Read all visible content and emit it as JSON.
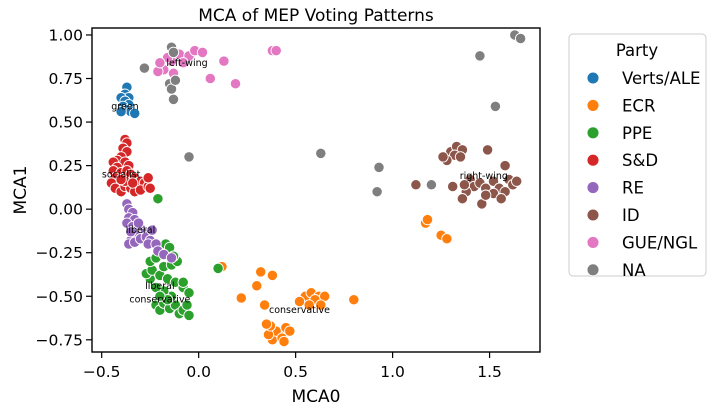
{
  "chart_data": {
    "type": "scatter",
    "title": "MCA of MEP Voting Patterns",
    "xlabel": "MCA0",
    "ylabel": "MCA1",
    "xlim": [
      -0.55,
      1.76
    ],
    "ylim": [
      -0.82,
      1.04
    ],
    "xticks": [
      -0.5,
      0.0,
      0.5,
      1.0,
      1.5
    ],
    "xtick_labels": [
      "−0.5",
      "0.0",
      "0.5",
      "1.0",
      "1.5"
    ],
    "yticks": [
      -0.75,
      -0.5,
      -0.25,
      0.0,
      0.25,
      0.5,
      0.75,
      1.0
    ],
    "ytick_labels": [
      "−0.75",
      "−0.50",
      "−0.25",
      "0.00",
      "0.25",
      "0.50",
      "0.75",
      "1.00"
    ],
    "grid": false,
    "legend": {
      "title": "Party",
      "placement": "outside-right"
    },
    "series": [
      {
        "name": "Verts/ALE",
        "color": "#1f77b4",
        "points": [
          [
            -0.37,
            0.7
          ],
          [
            -0.38,
            0.66
          ],
          [
            -0.36,
            0.64
          ],
          [
            -0.4,
            0.64
          ],
          [
            -0.38,
            0.62
          ],
          [
            -0.36,
            0.6
          ],
          [
            -0.39,
            0.59
          ],
          [
            -0.37,
            0.57
          ],
          [
            -0.35,
            0.56
          ],
          [
            -0.33,
            0.55
          ],
          [
            -0.4,
            0.56
          ],
          [
            -0.42,
            0.14
          ]
        ]
      },
      {
        "name": "ECR",
        "color": "#ff7f0e",
        "points": [
          [
            0.42,
            -0.72
          ],
          [
            0.38,
            -0.75
          ],
          [
            0.4,
            -0.7
          ],
          [
            0.45,
            -0.68
          ],
          [
            0.43,
            -0.74
          ],
          [
            0.36,
            -0.72
          ],
          [
            0.47,
            -0.7
          ],
          [
            0.44,
            -0.76
          ],
          [
            0.37,
            -0.67
          ],
          [
            0.35,
            -0.66
          ],
          [
            0.55,
            -0.5
          ],
          [
            0.58,
            -0.48
          ],
          [
            0.62,
            -0.5
          ],
          [
            0.6,
            -0.52
          ],
          [
            0.65,
            -0.5
          ],
          [
            0.52,
            -0.53
          ],
          [
            0.57,
            -0.55
          ],
          [
            0.63,
            -0.55
          ],
          [
            0.8,
            -0.52
          ],
          [
            0.32,
            -0.36
          ],
          [
            0.38,
            -0.38
          ],
          [
            0.3,
            -0.44
          ],
          [
            0.22,
            -0.51
          ],
          [
            0.34,
            -0.55
          ],
          [
            0.12,
            -0.33
          ],
          [
            1.17,
            -0.08
          ],
          [
            1.18,
            -0.06
          ],
          [
            1.25,
            -0.15
          ],
          [
            1.28,
            -0.17
          ]
        ]
      },
      {
        "name": "PPE",
        "color": "#2ca02c",
        "points": [
          [
            -0.22,
            -0.55
          ],
          [
            -0.2,
            -0.58
          ],
          [
            -0.18,
            -0.54
          ],
          [
            -0.15,
            -0.57
          ],
          [
            -0.12,
            -0.55
          ],
          [
            -0.1,
            -0.6
          ],
          [
            -0.08,
            -0.58
          ],
          [
            -0.06,
            -0.55
          ],
          [
            -0.05,
            -0.61
          ],
          [
            -0.14,
            -0.5
          ],
          [
            -0.18,
            -0.47
          ],
          [
            -0.22,
            -0.45
          ],
          [
            -0.25,
            -0.4
          ],
          [
            -0.27,
            -0.37
          ],
          [
            -0.24,
            -0.35
          ],
          [
            -0.2,
            -0.38
          ],
          [
            -0.16,
            -0.4
          ],
          [
            -0.12,
            -0.42
          ],
          [
            -0.08,
            -0.45
          ],
          [
            -0.05,
            -0.48
          ],
          [
            -0.25,
            -0.3
          ],
          [
            -0.22,
            -0.28
          ],
          [
            -0.18,
            -0.33
          ],
          [
            -0.14,
            -0.32
          ],
          [
            -0.11,
            -0.3
          ],
          [
            -0.08,
            -0.42
          ],
          [
            -0.16,
            -0.52
          ],
          [
            -0.2,
            -0.5
          ],
          [
            -0.17,
            -0.2
          ],
          [
            -0.15,
            -0.22
          ],
          [
            -0.13,
            -0.27
          ],
          [
            -0.21,
            0.06
          ],
          [
            0.1,
            -0.34
          ]
        ]
      },
      {
        "name": "S&D",
        "color": "#d62728",
        "points": [
          [
            -0.38,
            0.4
          ],
          [
            -0.37,
            0.38
          ],
          [
            -0.39,
            0.35
          ],
          [
            -0.37,
            0.33
          ],
          [
            -0.4,
            0.3
          ],
          [
            -0.42,
            0.28
          ],
          [
            -0.44,
            0.27
          ],
          [
            -0.38,
            0.27
          ],
          [
            -0.36,
            0.25
          ],
          [
            -0.42,
            0.24
          ],
          [
            -0.44,
            0.22
          ],
          [
            -0.4,
            0.21
          ],
          [
            -0.37,
            0.22
          ],
          [
            -0.35,
            0.2
          ],
          [
            -0.33,
            0.18
          ],
          [
            -0.3,
            0.16
          ],
          [
            -0.28,
            0.15
          ],
          [
            -0.43,
            0.18
          ],
          [
            -0.45,
            0.15
          ],
          [
            -0.43,
            0.12
          ],
          [
            -0.4,
            0.1
          ],
          [
            -0.38,
            0.13
          ],
          [
            -0.35,
            0.12
          ],
          [
            -0.33,
            0.1
          ],
          [
            -0.3,
            0.11
          ],
          [
            -0.26,
            0.13
          ],
          [
            -0.38,
            0.16
          ],
          [
            -0.4,
            0.17
          ],
          [
            -0.34,
            0.15
          ],
          [
            -0.26,
            0.18
          ],
          [
            -0.25,
            0.12
          ]
        ]
      },
      {
        "name": "RE",
        "color": "#9467bd",
        "points": [
          [
            -0.37,
            0.03
          ],
          [
            -0.36,
            0.0
          ],
          [
            -0.34,
            -0.02
          ],
          [
            -0.36,
            -0.05
          ],
          [
            -0.33,
            -0.06
          ],
          [
            -0.37,
            -0.08
          ],
          [
            -0.34,
            -0.1
          ],
          [
            -0.32,
            -0.12
          ],
          [
            -0.3,
            -0.11
          ],
          [
            -0.28,
            -0.14
          ],
          [
            -0.32,
            -0.15
          ],
          [
            -0.35,
            -0.18
          ],
          [
            -0.36,
            -0.2
          ],
          [
            -0.33,
            -0.19
          ],
          [
            -0.3,
            -0.17
          ],
          [
            -0.27,
            -0.16
          ],
          [
            -0.25,
            -0.18
          ],
          [
            -0.26,
            -0.2
          ],
          [
            -0.24,
            -0.12
          ],
          [
            -0.35,
            -0.13
          ],
          [
            -0.31,
            -0.08
          ],
          [
            -0.22,
            -0.2
          ],
          [
            -0.21,
            -0.24
          ],
          [
            -0.18,
            -0.26
          ],
          [
            -0.14,
            -0.28
          ]
        ]
      },
      {
        "name": "ID",
        "color": "#8c564b",
        "points": [
          [
            1.3,
            0.33
          ],
          [
            1.33,
            0.36
          ],
          [
            1.36,
            0.34
          ],
          [
            1.32,
            0.31
          ],
          [
            1.35,
            0.3
          ],
          [
            1.28,
            0.28
          ],
          [
            1.26,
            0.3
          ],
          [
            1.49,
            0.34
          ],
          [
            1.58,
            0.25
          ],
          [
            1.4,
            0.17
          ],
          [
            1.42,
            0.13
          ],
          [
            1.45,
            0.15
          ],
          [
            1.48,
            0.12
          ],
          [
            1.52,
            0.16
          ],
          [
            1.55,
            0.12
          ],
          [
            1.58,
            0.1
          ],
          [
            1.6,
            0.17
          ],
          [
            1.62,
            0.14
          ],
          [
            1.64,
            0.16
          ],
          [
            1.52,
            0.09
          ],
          [
            1.38,
            0.1
          ],
          [
            1.36,
            0.06
          ],
          [
            1.46,
            0.03
          ],
          [
            1.31,
            0.13
          ],
          [
            1.37,
            0.14
          ],
          [
            1.56,
            0.06
          ],
          [
            1.12,
            0.14
          ],
          [
            1.48,
            0.08
          ]
        ]
      },
      {
        "name": "GUE/NGL",
        "color": "#e377c2",
        "points": [
          [
            -0.1,
            0.89
          ],
          [
            -0.05,
            0.88
          ],
          [
            -0.02,
            0.91
          ],
          [
            0.02,
            0.9
          ],
          [
            -0.08,
            0.84
          ],
          [
            -0.14,
            0.85
          ],
          [
            -0.18,
            0.8
          ],
          [
            -0.21,
            0.79
          ],
          [
            -0.13,
            0.78
          ],
          [
            0.13,
            0.85
          ],
          [
            0.19,
            0.72
          ],
          [
            0.06,
            0.75
          ],
          [
            0.38,
            0.91
          ],
          [
            0.4,
            0.91
          ],
          [
            -0.16,
            0.87
          ],
          [
            -0.2,
            0.84
          ]
        ]
      },
      {
        "name": "NA",
        "color": "#7f7f7f",
        "points": [
          [
            1.63,
            1.0
          ],
          [
            1.66,
            0.98
          ],
          [
            1.45,
            0.88
          ],
          [
            1.53,
            0.59
          ],
          [
            -0.28,
            0.81
          ],
          [
            -0.15,
            0.72
          ],
          [
            -0.14,
            0.69
          ],
          [
            -0.12,
            0.74
          ],
          [
            -0.13,
            0.63
          ],
          [
            -0.05,
            0.3
          ],
          [
            0.63,
            0.32
          ],
          [
            0.93,
            0.24
          ],
          [
            0.92,
            0.1
          ],
          [
            1.2,
            0.14
          ],
          [
            -0.14,
            0.93
          ],
          [
            -0.13,
            0.9
          ]
        ]
      }
    ],
    "annotations": [
      {
        "text": "green",
        "x": -0.38,
        "y": 0.59
      },
      {
        "text": "left-wing",
        "x": -0.06,
        "y": 0.84
      },
      {
        "text": "socialist",
        "x": -0.4,
        "y": 0.2
      },
      {
        "text": "right-wing",
        "x": 1.47,
        "y": 0.19
      },
      {
        "text": "liberal",
        "x": -0.3,
        "y": -0.12
      },
      {
        "text": "liberal",
        "x": -0.2,
        "y": -0.44
      },
      {
        "text": "conservative",
        "x": -0.2,
        "y": -0.52
      },
      {
        "text": "conservative",
        "x": 0.52,
        "y": -0.58
      }
    ]
  }
}
